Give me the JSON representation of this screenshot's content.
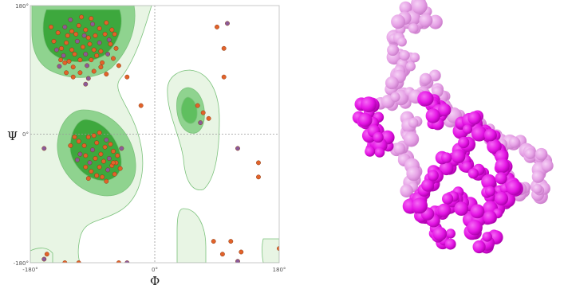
{
  "rama": {
    "xlabel": "Φ",
    "ylabel": "Ψ",
    "xlim": [
      -180,
      180
    ],
    "ylim": [
      -180,
      180
    ],
    "x_ticks": [
      {
        "label": "-180°",
        "value": -180
      },
      {
        "label": "0°",
        "value": 0
      },
      {
        "label": "180°",
        "value": 180
      }
    ],
    "y_ticks": [
      {
        "label": "-180°",
        "value": -180
      },
      {
        "label": "0°",
        "value": 0
      },
      {
        "label": "180°",
        "value": 180
      }
    ],
    "colors": {
      "favored": "#3da83d",
      "allowed": "#8fd38f",
      "generous": "#e8f5e4",
      "border": "#7cc27c",
      "point_fill": "#e2622a",
      "point_alt": "#8a5a9a",
      "point_stroke": "#8a3a10"
    }
  },
  "chart_data": {
    "type": "scatter",
    "xlabel": "Φ",
    "ylabel": "Ψ",
    "xlim": [
      -180,
      180
    ],
    "ylim": [
      -180,
      180
    ],
    "grid": false,
    "series": [
      {
        "points": [
          [
            -135,
            120
          ],
          [
            -128,
            128
          ],
          [
            -120,
            118
          ],
          [
            -112,
            130
          ],
          [
            -104,
            122
          ],
          [
            -96,
            135
          ],
          [
            -88,
            118
          ],
          [
            -80,
            128
          ],
          [
            -72,
            140
          ],
          [
            -64,
            126
          ],
          [
            -56,
            120
          ],
          [
            -132,
            110
          ],
          [
            -124,
            102
          ],
          [
            -116,
            112
          ],
          [
            -108,
            104
          ],
          [
            -100,
            112
          ],
          [
            -92,
            104
          ],
          [
            -84,
            110
          ],
          [
            -76,
            100
          ],
          [
            -68,
            112
          ],
          [
            -60,
            106
          ],
          [
            -52,
            96
          ],
          [
            -140,
            142
          ],
          [
            -130,
            150
          ],
          [
            -120,
            144
          ],
          [
            -110,
            152
          ],
          [
            -100,
            146
          ],
          [
            -90,
            154
          ],
          [
            -80,
            148
          ],
          [
            -70,
            156
          ],
          [
            -62,
            146
          ],
          [
            -138,
            95
          ],
          [
            -128,
            86
          ],
          [
            -118,
            94
          ],
          [
            -108,
            86
          ],
          [
            -98,
            96
          ],
          [
            -88,
            88
          ],
          [
            -78,
            94
          ],
          [
            -70,
            84
          ],
          [
            -122,
            160
          ],
          [
            -106,
            164
          ],
          [
            -92,
            162
          ],
          [
            -146,
            130
          ],
          [
            -142,
            118
          ],
          [
            -136,
            104
          ],
          [
            -126,
            138
          ],
          [
            -114,
            140
          ],
          [
            -102,
            138
          ],
          [
            -94,
            126
          ],
          [
            -86,
            138
          ],
          [
            -78,
            116
          ],
          [
            -66,
            132
          ],
          [
            -58,
            140
          ],
          [
            -150,
            150
          ],
          [
            -118,
            80
          ],
          [
            -96,
            78
          ],
          [
            -110,
            -10
          ],
          [
            -102,
            -16
          ],
          [
            -96,
            -4
          ],
          [
            -90,
            -22
          ],
          [
            -84,
            -12
          ],
          [
            -78,
            -28
          ],
          [
            -72,
            -18
          ],
          [
            -66,
            -34
          ],
          [
            -60,
            -24
          ],
          [
            -56,
            -40
          ],
          [
            -100,
            -30
          ],
          [
            -94,
            -40
          ],
          [
            -86,
            -34
          ],
          [
            -80,
            -46
          ],
          [
            -74,
            -38
          ],
          [
            -68,
            -50
          ],
          [
            -62,
            -44
          ],
          [
            -54,
            -30
          ],
          [
            -116,
            -4
          ],
          [
            -108,
            -28
          ],
          [
            -92,
            -52
          ],
          [
            -84,
            -58
          ],
          [
            -76,
            -60
          ],
          [
            -70,
            -8
          ],
          [
            -64,
            -14
          ],
          [
            -58,
            -56
          ],
          [
            -50,
            -48
          ],
          [
            -48,
            -20
          ],
          [
            -122,
            -16
          ],
          [
            -88,
            -2
          ],
          [
            -100,
            -46
          ],
          [
            -112,
            -36
          ],
          [
            -80,
            2
          ],
          [
            -96,
            -62
          ],
          [
            -70,
            -66
          ],
          [
            -160,
            -20
          ],
          [
            70,
            30
          ],
          [
            62,
            40
          ],
          [
            78,
            22
          ],
          [
            66,
            16
          ],
          [
            -60,
            -40
          ],
          [
            -40,
            80
          ],
          [
            -20,
            40
          ],
          [
            -40,
            -180
          ],
          [
            -52,
            -180
          ],
          [
            -110,
            -180
          ],
          [
            -130,
            -180
          ],
          [
            -160,
            -175
          ],
          [
            -156,
            -168
          ],
          [
            90,
            150
          ],
          [
            100,
            120
          ],
          [
            105,
            155
          ],
          [
            100,
            80
          ],
          [
            150,
            -40
          ],
          [
            150,
            -60
          ],
          [
            120,
            -20
          ],
          [
            85,
            -150
          ],
          [
            110,
            -150
          ],
          [
            125,
            -165
          ],
          [
            120,
            -178
          ],
          [
            98,
            -168
          ],
          [
            180,
            -160
          ],
          [
            -130,
            100
          ],
          [
            -100,
            70
          ]
        ]
      }
    ]
  },
  "molecule": {
    "colors": {
      "light_chain": "#e6a2e6",
      "light_chain_shade": "#c97ac9",
      "dark_chain": "#e414e4",
      "dark_chain_shade": "#a800a8"
    }
  }
}
